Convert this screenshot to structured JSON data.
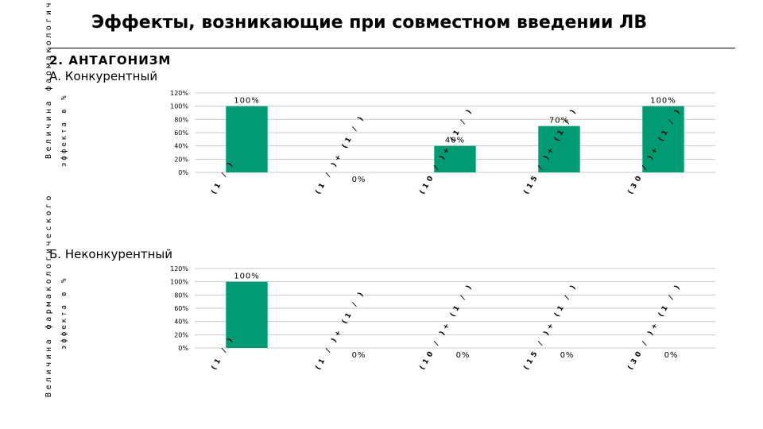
{
  "slide": {
    "title": "Эффекты, возникающие при совместном введении ЛВ",
    "section_heading": "2. АНТАГОНИЗМ",
    "subheading_a": "А. Конкурентный",
    "subheading_b": "Б. Неконкурентный",
    "side_label_line1": "Величина фармакологического",
    "side_label_line2": "эффекта в %",
    "side_label_truncated": "Величина фармакологического"
  },
  "colors": {
    "bar": "#009b72",
    "grid": "#c8c8c8"
  },
  "chart_data": [
    {
      "type": "bar",
      "ylabel": "",
      "ylim": [
        0,
        120
      ],
      "yticks": [
        "0%",
        "20%",
        "40%",
        "60%",
        "80%",
        "100%",
        "120%"
      ],
      "categories": [
        "(1 / )",
        "(1 / )+ (1 / )",
        "(10 / )+ (1 / )",
        "(15 / )+ (1 / )",
        "(30 / )+ (1 / )"
      ],
      "values": [
        100,
        0,
        40,
        70,
        100
      ],
      "data_labels": [
        "100%",
        "0%",
        "40%",
        "70%",
        "100%"
      ],
      "grid": true
    },
    {
      "type": "bar",
      "ylabel": "",
      "ylim": [
        0,
        120
      ],
      "yticks": [
        "0%",
        "20%",
        "40%",
        "60%",
        "80%",
        "100%",
        "120%"
      ],
      "categories": [
        "(1 / )",
        "(1 / )+ (1 / )",
        "(10 / )+ (1 / )",
        "(15 / )+ (1 / )",
        "(30 / )+ (1 / )"
      ],
      "values": [
        100,
        0,
        0,
        0,
        0
      ],
      "data_labels": [
        "100%",
        "0%",
        "0%",
        "0%",
        "0%"
      ],
      "grid": true
    }
  ]
}
